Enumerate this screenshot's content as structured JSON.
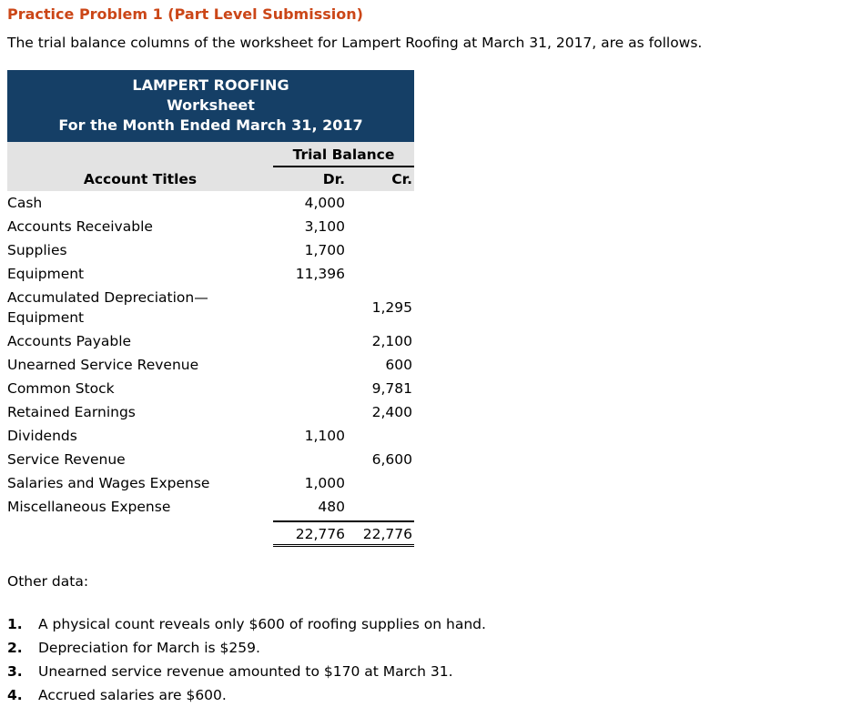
{
  "page": {
    "title": "Practice Problem 1 (Part Level Submission)",
    "intro": "The trial balance columns of the worksheet for Lampert Roofing at March 31, 2017, are as follows."
  },
  "worksheet": {
    "company": "LAMPERT ROOFING",
    "doc_type": "Worksheet",
    "period": "For the Month Ended March 31, 2017",
    "section_header": "Trial Balance",
    "columns": {
      "account": "Account Titles",
      "dr": "Dr.",
      "cr": "Cr."
    },
    "rows": [
      {
        "account": "Cash",
        "dr": "4,000",
        "cr": ""
      },
      {
        "account": "Accounts Receivable",
        "dr": "3,100",
        "cr": ""
      },
      {
        "account": "Supplies",
        "dr": "1,700",
        "cr": ""
      },
      {
        "account": "Equipment",
        "dr": "11,396",
        "cr": ""
      },
      {
        "account": "Accumulated Depreciation—Equipment",
        "dr": "",
        "cr": "1,295"
      },
      {
        "account": "Accounts Payable",
        "dr": "",
        "cr": "2,100"
      },
      {
        "account": "Unearned Service Revenue",
        "dr": "",
        "cr": "600"
      },
      {
        "account": "Common Stock",
        "dr": "",
        "cr": "9,781"
      },
      {
        "account": "Retained Earnings",
        "dr": "",
        "cr": "2,400"
      },
      {
        "account": "Dividends",
        "dr": "1,100",
        "cr": ""
      },
      {
        "account": "Service Revenue",
        "dr": "",
        "cr": "6,600"
      },
      {
        "account": "Salaries and Wages Expense",
        "dr": "1,000",
        "cr": ""
      },
      {
        "account": "Miscellaneous Expense",
        "dr": "480",
        "cr": ""
      }
    ],
    "totals": {
      "dr": "22,776",
      "cr": "22,776"
    }
  },
  "other_data": {
    "heading": "Other data:",
    "items": [
      {
        "num": "1.",
        "text": "A physical count reveals only $600 of roofing supplies on hand."
      },
      {
        "num": "2.",
        "text": "Depreciation for March is $259."
      },
      {
        "num": "3.",
        "text": "Unearned service revenue amounted to $170 at March 31."
      },
      {
        "num": "4.",
        "text": "Accrued salaries are $600."
      }
    ]
  },
  "colors": {
    "header_navy": "#153f66",
    "header_gray": "#e3e3e3",
    "title_orange": "#cb4617"
  }
}
